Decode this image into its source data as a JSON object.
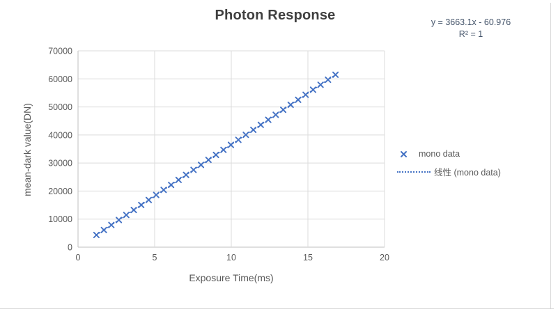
{
  "chart": {
    "title": "Photon Response",
    "equation_line1": "y = 3663.1x - 60.976",
    "equation_line2": "R² = 1",
    "x_axis_title": "Exposure Time(ms)",
    "y_axis_title": "mean-dark value(DN)",
    "legend": {
      "series_label": "mono data",
      "trendline_label": "线性 (mono data)"
    },
    "colors": {
      "series": "#4472c4",
      "gridline": "#dbdbdb",
      "axis_line": "#bfbfbf",
      "tick_text": "#595959",
      "title_text": "#3f3f3f",
      "equation_text": "#44546a"
    }
  },
  "chart_data": {
    "type": "scatter",
    "title": "Photon Response",
    "xlabel": "Exposure Time(ms)",
    "ylabel": "mean-dark value(DN)",
    "xlim": [
      0,
      20
    ],
    "ylim": [
      0,
      70000
    ],
    "x_ticks": [
      0,
      5,
      10,
      15,
      20
    ],
    "y_ticks": [
      0,
      10000,
      20000,
      30000,
      40000,
      50000,
      60000,
      70000
    ],
    "grid": true,
    "legend_position": "right",
    "series": [
      {
        "name": "mono data",
        "marker": "x",
        "x": [
          1.2,
          1.6875,
          2.175,
          2.6625,
          3.15,
          3.6375,
          4.125,
          4.6125,
          5.1,
          5.5875,
          6.075,
          6.5625,
          7.05,
          7.5375,
          8.025,
          8.5125,
          9.0,
          9.4875,
          9.975,
          10.4625,
          10.95,
          11.4375,
          11.925,
          12.4125,
          12.9,
          13.3875,
          13.875,
          14.3625,
          14.85,
          15.3375,
          15.825,
          16.3125,
          16.8
        ],
        "y": [
          4334.7,
          6120.5,
          7906.3,
          9692.0,
          11477.8,
          13263.6,
          15049.3,
          16835.1,
          18620.8,
          20406.6,
          22192.4,
          23978.1,
          25763.9,
          27549.6,
          29335.4,
          31121.2,
          32906.9,
          34692.7,
          36478.4,
          38264.2,
          40050.0,
          41835.7,
          43621.5,
          45407.3,
          47193.0,
          48978.8,
          50764.5,
          52550.3,
          54336.1,
          56121.8,
          57907.6,
          59693.3,
          61479.1
        ]
      }
    ],
    "trendline": {
      "type": "linear",
      "label": "线性 (mono data)",
      "slope": 3663.1,
      "intercept": -60.976,
      "equation": "y = 3663.1x - 60.976",
      "r_squared": 1
    }
  }
}
